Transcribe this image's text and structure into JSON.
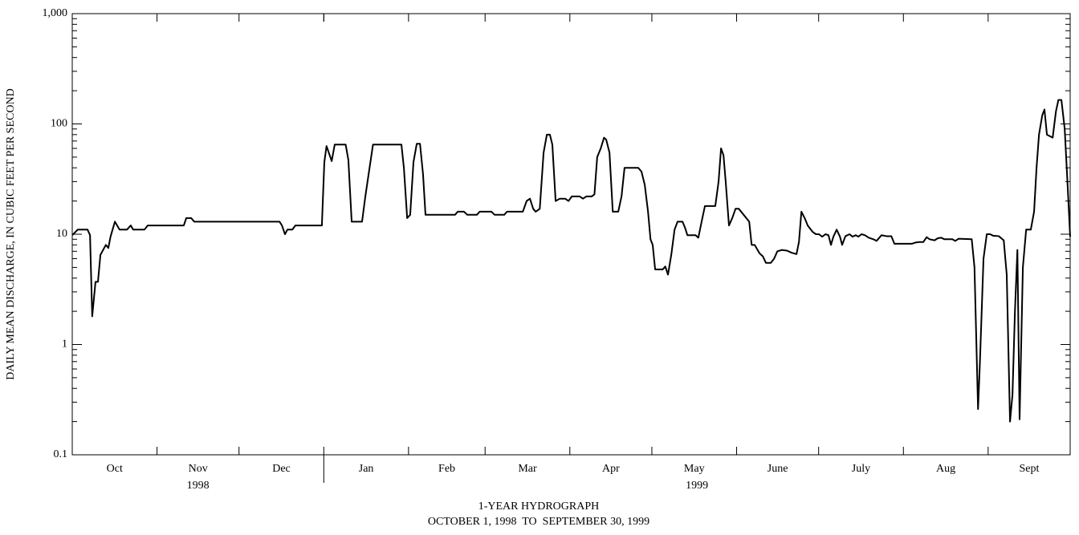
{
  "chart_data": {
    "type": "line",
    "ylabel": "DAILY MEAN DISCHARGE, IN CUBIC FEET PER SECOND",
    "xlabel": [
      "1-YEAR HYDROGRAPH",
      "OCTOBER 1, 1998  TO  SEPTEMBER 30, 1999"
    ],
    "months": [
      "Oct",
      "Nov",
      "Dec",
      "Jan",
      "Feb",
      "Mar",
      "Apr",
      "May",
      "June",
      "July",
      "Aug",
      "Sept"
    ],
    "years": [
      "1998",
      "1999"
    ],
    "xlim": [
      0,
      365
    ],
    "xticks": [
      0,
      31,
      61,
      92,
      123,
      151,
      182,
      212,
      243,
      273,
      304,
      335,
      365
    ],
    "ylim": [
      0.1,
      1000
    ],
    "log": true,
    "color": "#000000",
    "yticks": [
      {
        "value": 1000,
        "label": "1,000"
      },
      100,
      10,
      1,
      0.1
    ],
    "yticks_minor": [
      0.2,
      0.3,
      0.4,
      0.5,
      0.6,
      0.7,
      0.8,
      0.9,
      2,
      3,
      4,
      5,
      6,
      7,
      8,
      9,
      20,
      30,
      40,
      50,
      60,
      70,
      80,
      90,
      200,
      300,
      400,
      500,
      600,
      700,
      800,
      900
    ],
    "x": [
      0,
      2,
      5.6,
      6.5,
      7.3,
      8.5,
      9.4,
      10.3,
      12.3,
      13.2,
      14,
      15.6,
      17.3,
      20,
      21.4,
      22.3,
      26.4,
      27.6,
      40.8,
      41.7,
      43.5,
      44.6,
      75.8,
      76.7,
      77.8,
      78.7,
      80.5,
      81.6,
      91.3,
      92.2,
      93,
      94.9,
      96,
      100,
      101,
      102.2,
      106,
      107.2,
      108.4,
      110,
      120.4,
      121.3,
      122.5,
      123.6,
      124.8,
      126,
      127.2,
      128.3,
      129.2,
      140,
      141,
      143.3,
      144.5,
      148,
      149,
      153.3,
      154.5,
      158,
      159,
      164.8,
      166.2,
      167.4,
      168.6,
      169.5,
      171,
      172.4,
      173.6,
      174.7,
      175.6,
      176.8,
      178.3,
      180.3,
      181.5,
      182.7,
      185.6,
      186.8,
      188,
      190,
      191,
      192,
      193.3,
      194.5,
      195.3,
      196.5,
      197.7,
      199.7,
      200.9,
      202,
      207,
      208.2,
      209.4,
      210.6,
      211.5,
      212.3,
      213.2,
      216,
      216.9,
      217.9,
      219.1,
      220.3,
      221.4,
      223.2,
      224.1,
      225,
      228,
      229,
      230.2,
      231.4,
      235.2,
      236.4,
      237.3,
      238.2,
      239,
      240.2,
      241.4,
      242.6,
      243.8,
      247.6,
      248.5,
      249.6,
      251.4,
      252.6,
      253.7,
      255.5,
      256.7,
      257.9,
      259.6,
      261.4,
      263.1,
      264.9,
      265.8,
      266.7,
      267.9,
      269,
      270.8,
      272,
      273.1,
      274.3,
      275.5,
      276.6,
      277.5,
      278.4,
      279.6,
      280.8,
      281.6,
      282.8,
      284.3,
      285.4,
      286.6,
      287.5,
      288.7,
      289.9,
      291.3,
      293,
      294.2,
      296,
      297.8,
      299.6,
      300.7,
      307.2,
      308.4,
      309.8,
      311.3,
      312.5,
      313.6,
      315.4,
      316.6,
      317.8,
      319,
      321.9,
      323,
      324.2,
      329,
      330,
      331.3,
      332,
      333.3,
      334.5,
      335.7,
      336.8,
      338.9,
      340.7,
      341.8,
      343,
      343.9,
      344.8,
      345.7,
      346.5,
      347.7,
      348.9,
      350.6,
      351.8,
      352.7,
      353.6,
      354.8,
      355.6,
      356.5,
      358.6,
      359.8,
      360.7,
      361.8,
      363,
      364,
      365
    ],
    "values": [
      9.8,
      11,
      11,
      9.8,
      1.8,
      3.7,
      3.7,
      6.5,
      8,
      7.5,
      9.5,
      13,
      11,
      11,
      12,
      11,
      11,
      12,
      12,
      14,
      14,
      13,
      13,
      12,
      10,
      11,
      11,
      12,
      12,
      45,
      63,
      46,
      65,
      65,
      47,
      13,
      13,
      22,
      35,
      65,
      65,
      40,
      14,
      15,
      45,
      66,
      66,
      35,
      15,
      15,
      16,
      16,
      15,
      15,
      16,
      16,
      15,
      15,
      16,
      16,
      20,
      21,
      17,
      16,
      17,
      55,
      80,
      80,
      65,
      20,
      21,
      21,
      20,
      22,
      22,
      21,
      22,
      22,
      23,
      50,
      60,
      75,
      72,
      55,
      16,
      16,
      22,
      40,
      40,
      37,
      28,
      16,
      9,
      8,
      4.8,
      4.8,
      5.1,
      4.3,
      6.5,
      11,
      13,
      13,
      11.5,
      9.8,
      9.8,
      9.3,
      13,
      18,
      18,
      30,
      60,
      52,
      30,
      12,
      14,
      17,
      17,
      13,
      8,
      8,
      6.7,
      6.3,
      5.5,
      5.5,
      6,
      7,
      7.2,
      7.1,
      6.8,
      6.6,
      8.5,
      16,
      14,
      12,
      10.5,
      10,
      10,
      9.5,
      10,
      9.8,
      8,
      9.5,
      11,
      9.5,
      8,
      9.6,
      10,
      9.5,
      9.8,
      9.5,
      10,
      9.8,
      9.3,
      9,
      8.7,
      9.8,
      9.6,
      9.6,
      8.2,
      8.2,
      8.4,
      8.5,
      8.5,
      9.4,
      9,
      8.8,
      9.2,
      9.3,
      9,
      9,
      8.7,
      9.1,
      9,
      5,
      0.26,
      0.7,
      6,
      10,
      10,
      9.7,
      9.6,
      8.8,
      4.3,
      0.2,
      0.35,
      2,
      7.2,
      0.21,
      5,
      11,
      11,
      16,
      40,
      80,
      120,
      135,
      80,
      75,
      130,
      165,
      165,
      90,
      30,
      9.5
    ]
  }
}
